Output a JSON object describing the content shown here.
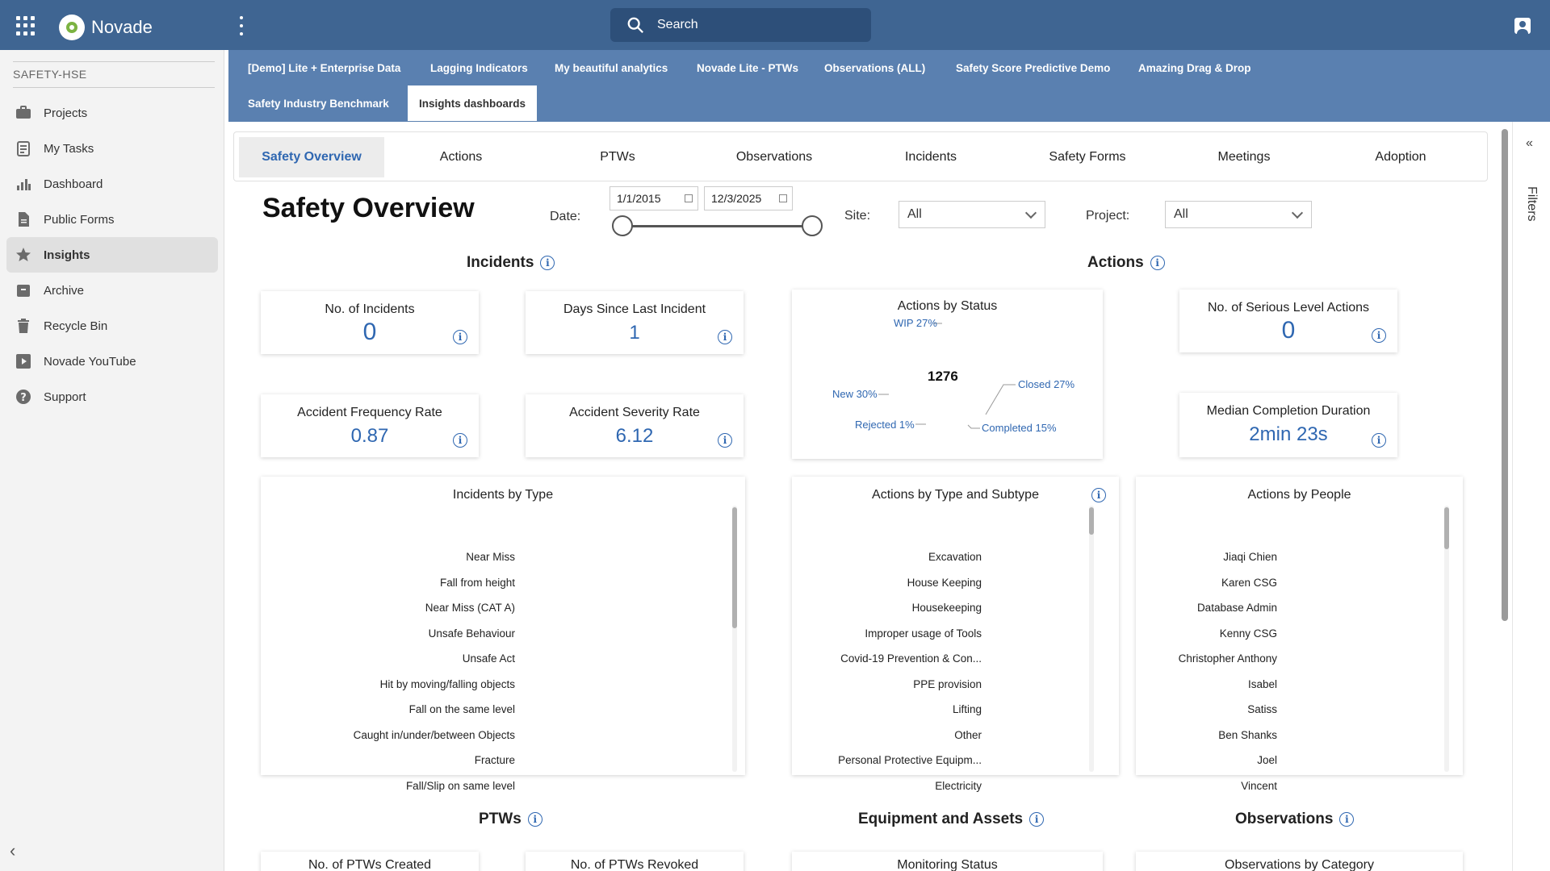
{
  "app": {
    "brand": "Novade",
    "search_placeholder": "Search"
  },
  "sidebar": {
    "workspace": "SAFETY-HSE",
    "items": [
      {
        "label": "Projects",
        "icon": "briefcase-icon"
      },
      {
        "label": "My Tasks",
        "icon": "clipboard-icon"
      },
      {
        "label": "Dashboard",
        "icon": "bar-chart-icon"
      },
      {
        "label": "Public Forms",
        "icon": "document-icon"
      },
      {
        "label": "Insights",
        "icon": "star-icon",
        "active": true
      },
      {
        "label": "Archive",
        "icon": "archive-icon"
      },
      {
        "label": "Recycle Bin",
        "icon": "trash-icon"
      },
      {
        "label": "Novade YouTube",
        "icon": "play-icon"
      },
      {
        "label": "Support",
        "icon": "help-icon"
      }
    ]
  },
  "dashboards": {
    "tabs": [
      "[Demo] Lite + Enterprise Data",
      "Lagging Indicators",
      "My beautiful analytics",
      "Novade Lite - PTWs",
      "Observations (ALL)",
      "Safety Score Predictive Demo",
      "Amazing Drag & Drop",
      "Safety Industry Benchmark",
      "Insights dashboards"
    ],
    "active": "Insights dashboards"
  },
  "report_tabs": [
    "Safety Overview",
    "Actions",
    "PTWs",
    "Observations",
    "Incidents",
    "Safety Forms",
    "Meetings",
    "Adoption"
  ],
  "overview": {
    "title": "Safety Overview",
    "date_label": "Date:",
    "date_from": "1/1/2015",
    "date_to": "12/3/2025",
    "site_label": "Site:",
    "site_value": "All",
    "project_label": "Project:",
    "project_value": "All"
  },
  "incidents": {
    "title": "Incidents",
    "no_incidents": {
      "label": "No. of Incidents",
      "value": "0"
    },
    "days_since": {
      "label": "Days Since Last Incident",
      "value": "1"
    },
    "afr": {
      "label": "Accident Frequency Rate",
      "value": "0.87"
    },
    "asr": {
      "label": "Accident Severity Rate",
      "value": "6.12"
    },
    "by_type": {
      "title": "Incidents by Type",
      "items": [
        "Near Miss",
        "Fall from height",
        "Near Miss (CAT A)",
        "Unsafe Behaviour",
        "Unsafe Act",
        "Hit by moving/falling objects",
        "Fall on the same level",
        "Caught in/under/between Objects",
        "Fracture",
        "Fall/Slip on same level"
      ]
    }
  },
  "actions": {
    "title": "Actions",
    "by_status": {
      "title": "Actions by Status",
      "total": "1276",
      "slices": [
        {
          "label": "WIP 27%",
          "pct": 27
        },
        {
          "label": "New 30%",
          "pct": 30
        },
        {
          "label": "Closed 27%",
          "pct": 27
        },
        {
          "label": "Rejected 1%",
          "pct": 1
        },
        {
          "label": "Completed 15%",
          "pct": 15
        }
      ]
    },
    "serious": {
      "label": "No. of Serious Level Actions",
      "value": "0"
    },
    "median": {
      "label": "Median Completion Duration",
      "value": "2min 23s"
    },
    "by_type": {
      "title": "Actions by Type and Subtype",
      "items": [
        "Excavation",
        "House Keeping",
        "Housekeeping",
        "Improper usage of Tools",
        "Covid-19 Prevention & Con...",
        "PPE provision",
        "Lifting",
        "Other",
        "Personal Protective Equipm...",
        "Electricity"
      ]
    },
    "by_people": {
      "title": "Actions by People",
      "items": [
        "Jiaqi Chien",
        "Karen CSG",
        "Database Admin",
        "Kenny CSG",
        "Christopher Anthony",
        "Isabel",
        "Satiss",
        "Ben Shanks",
        "Joel",
        "Vincent"
      ]
    }
  },
  "lower": {
    "ptws": "PTWs",
    "equipment": "Equipment and Assets",
    "observations": "Observations",
    "ptws_created": "No. of PTWs Created",
    "ptws_revoked": "No. of PTWs Revoked",
    "monitoring": "Monitoring Status",
    "obs_by_category": "Observations by Category"
  },
  "filters_label": "Filters"
}
